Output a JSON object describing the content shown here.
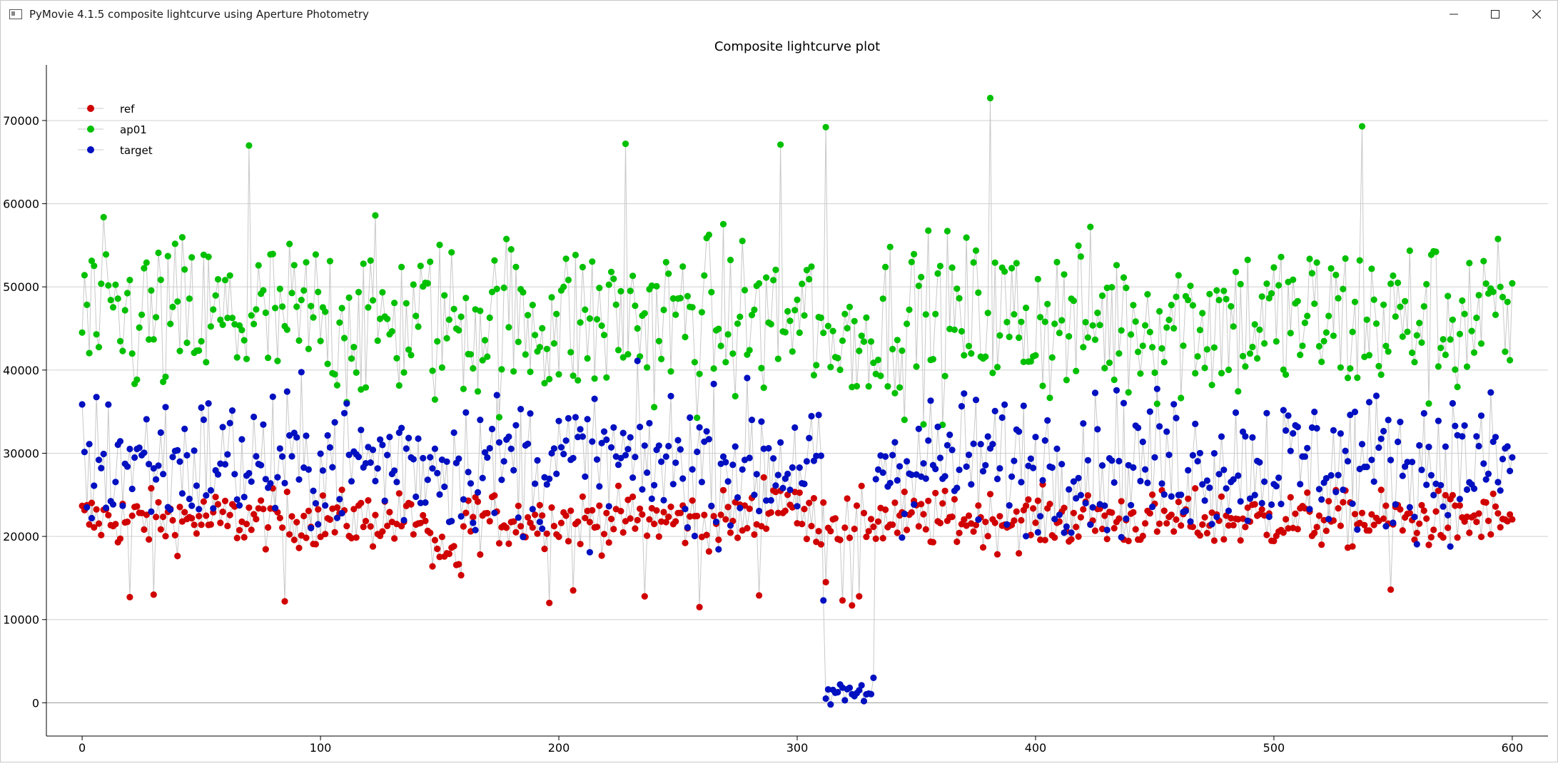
{
  "window": {
    "title": "PyMovie 4.1.5 composite lightcurve using Aperture Photometry",
    "minimize_icon": "minimize-icon",
    "maximize_icon": "maximize-icon",
    "close_icon": "close-icon"
  },
  "chart_data": {
    "type": "scatter",
    "title": "Composite lightcurve plot",
    "xlabel": "",
    "ylabel": "",
    "xlim": [
      -15,
      615
    ],
    "ylim": [
      -4000,
      76000
    ],
    "x_ticks": [
      0,
      100,
      200,
      300,
      400,
      500,
      600
    ],
    "y_ticks": [
      0,
      10000,
      20000,
      30000,
      40000,
      50000,
      60000,
      70000
    ],
    "grid": "horizontal",
    "legend_position": "top-left",
    "markers_connected": true,
    "connector_color": "#c8c8c8",
    "series": [
      {
        "name": "ref",
        "color": "#d00000",
        "base": 22000,
        "spread": 2800
      },
      {
        "name": "ap01",
        "color": "#00c000",
        "base": 46000,
        "spread": 8500
      },
      {
        "name": "target",
        "color": "#0010c0",
        "base": 29000,
        "spread": 7000
      }
    ],
    "x_range": [
      0,
      600
    ],
    "notable_points": {
      "ref": [
        [
          20,
          12700
        ],
        [
          30,
          13000
        ],
        [
          85,
          12200
        ],
        [
          196,
          12000
        ],
        [
          206,
          13500
        ],
        [
          236,
          12800
        ],
        [
          259,
          11500
        ],
        [
          284,
          12900
        ],
        [
          312,
          14500
        ],
        [
          319,
          12300
        ],
        [
          323,
          11700
        ],
        [
          326,
          12800
        ],
        [
          549,
          13600
        ]
      ],
      "ap01": [
        [
          70,
          67000
        ],
        [
          228,
          67200
        ],
        [
          293,
          67100
        ],
        [
          312,
          69200
        ],
        [
          381,
          72700
        ],
        [
          537,
          69300
        ]
      ],
      "target": [
        [
          311,
          12300
        ],
        [
          312,
          500
        ],
        [
          314,
          -200
        ],
        [
          316,
          1200
        ],
        [
          318,
          2200
        ],
        [
          320,
          300
        ],
        [
          322,
          1800
        ],
        [
          324,
          800
        ],
        [
          326,
          1500
        ],
        [
          328,
          200
        ],
        [
          330,
          1100
        ],
        [
          332,
          3000
        ]
      ]
    }
  }
}
